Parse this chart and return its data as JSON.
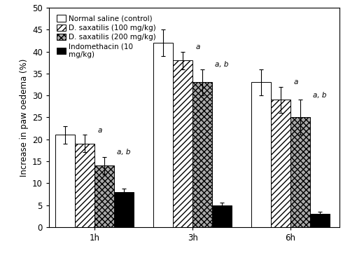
{
  "groups": [
    "1h",
    "3h",
    "6h"
  ],
  "series": [
    {
      "label": "Normal saline (control)",
      "values": [
        21,
        42,
        33
      ],
      "errors": [
        2,
        3,
        3
      ],
      "facecolor": "white",
      "edgecolor": "black",
      "hatch": ""
    },
    {
      "label": "D. saxatilis (100 mg/kg)",
      "values": [
        19,
        38,
        29
      ],
      "errors": [
        2,
        2,
        3
      ],
      "facecolor": "white",
      "edgecolor": "black",
      "hatch": "////"
    },
    {
      "label": "D. saxatilis (200 mg/kg)",
      "values": [
        14,
        33,
        25
      ],
      "errors": [
        2,
        3,
        4
      ],
      "facecolor": "#aaaaaa",
      "edgecolor": "black",
      "hatch": "xxxx"
    },
    {
      "label": "Indomethacin (10\nmg/kg)",
      "values": [
        8,
        5,
        3
      ],
      "errors": [
        0.8,
        0.5,
        0.5
      ],
      "facecolor": "black",
      "edgecolor": "black",
      "hatch": ""
    }
  ],
  "ylabel": "Increase in paw oedema (%)",
  "ylim": [
    0,
    50
  ],
  "yticks": [
    0,
    5,
    10,
    15,
    20,
    25,
    30,
    35,
    40,
    45,
    50
  ],
  "bar_width": 0.12,
  "group_centers": [
    0.28,
    0.88,
    1.48
  ],
  "xlim": [
    0.0,
    1.78
  ],
  "background_color": "white",
  "legend_fontsize": 7.5,
  "axis_fontsize": 8.5,
  "tick_fontsize": 8.5,
  "annot_fontsize": 7.5,
  "border_color": "#555555"
}
